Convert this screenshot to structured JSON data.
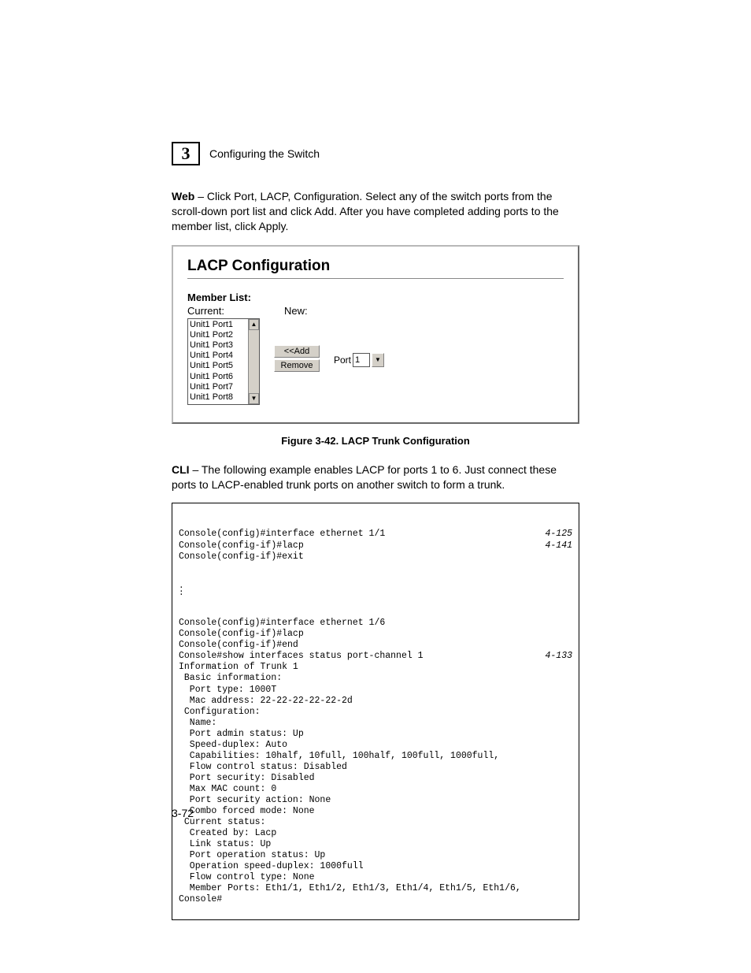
{
  "header": {
    "chapter_num": "3",
    "section_title": "Configuring the Switch"
  },
  "web_para": {
    "lead": "Web",
    "text": " – Click Port, LACP, Configuration. Select any of the switch ports from the scroll-down port list and click Add. After you have completed adding ports to the member list, click Apply."
  },
  "panel": {
    "title": "LACP Configuration",
    "member_list_label": "Member List:",
    "current_label": "Current:",
    "new_label": "New:",
    "port_items": [
      "Unit1 Port1",
      "Unit1 Port2",
      "Unit1 Port3",
      "Unit1 Port4",
      "Unit1 Port5",
      "Unit1 Port6",
      "Unit1 Port7",
      "Unit1 Port8"
    ],
    "add_btn": "<<Add",
    "remove_btn": "Remove",
    "port_label": "Port",
    "port_value": "1"
  },
  "figure_caption": "Figure 3-42.  LACP Trunk Configuration",
  "cli_para": {
    "lead": "CLI",
    "text": " – The following example enables LACP for ports 1 to 6. Just connect these ports to LACP-enabled trunk ports on another switch to form a trunk."
  },
  "cli": {
    "lines": [
      {
        "l": "Console(config)#interface ethernet 1/1",
        "r": "4-125"
      },
      {
        "l": "Console(config-if)#lacp",
        "r": "4-141"
      },
      {
        "l": "Console(config-if)#exit",
        "r": ""
      }
    ],
    "lines2": [
      {
        "l": "Console(config)#interface ethernet 1/6",
        "r": ""
      },
      {
        "l": "Console(config-if)#lacp",
        "r": ""
      },
      {
        "l": "Console(config-if)#end",
        "r": ""
      },
      {
        "l": "Console#show interfaces status port-channel 1",
        "r": "4-133"
      },
      {
        "l": "Information of Trunk 1",
        "r": ""
      },
      {
        "l": " Basic information:",
        "r": ""
      },
      {
        "l": "  Port type: 1000T",
        "r": ""
      },
      {
        "l": "  Mac address: 22-22-22-22-22-2d",
        "r": ""
      },
      {
        "l": " Configuration:",
        "r": ""
      },
      {
        "l": "  Name:",
        "r": ""
      },
      {
        "l": "  Port admin status: Up",
        "r": ""
      },
      {
        "l": "  Speed-duplex: Auto",
        "r": ""
      },
      {
        "l": "  Capabilities: 10half, 10full, 100half, 100full, 1000full,",
        "r": ""
      },
      {
        "l": "  Flow control status: Disabled",
        "r": ""
      },
      {
        "l": "  Port security: Disabled",
        "r": ""
      },
      {
        "l": "  Max MAC count: 0",
        "r": ""
      },
      {
        "l": "  Port security action: None",
        "r": ""
      },
      {
        "l": "  Combo forced mode: None",
        "r": ""
      },
      {
        "l": " Current status:",
        "r": ""
      },
      {
        "l": "  Created by: Lacp",
        "r": ""
      },
      {
        "l": "  Link status: Up",
        "r": ""
      },
      {
        "l": "  Port operation status: Up",
        "r": ""
      },
      {
        "l": "  Operation speed-duplex: 1000full",
        "r": ""
      },
      {
        "l": "  Flow control type: None",
        "r": ""
      },
      {
        "l": "  Member Ports: Eth1/1, Eth1/2, Eth1/3, Eth1/4, Eth1/5, Eth1/6,",
        "r": ""
      },
      {
        "l": "Console#",
        "r": ""
      }
    ]
  },
  "page_num": "3-72"
}
